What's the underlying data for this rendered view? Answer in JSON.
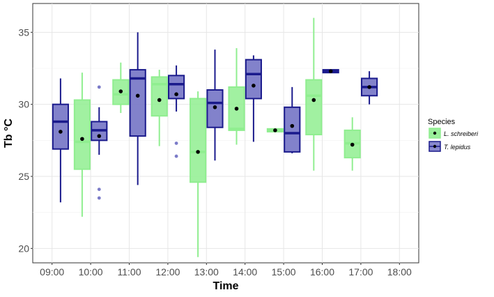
{
  "chart_data": {
    "type": "box",
    "title": "",
    "xlabel": "Time",
    "ylabel": "Tb °C",
    "ylim": [
      19.0,
      37.0
    ],
    "y_ticks": [
      20,
      25,
      30,
      35
    ],
    "categories": [
      "09:00",
      "10:00",
      "11:00",
      "12:00",
      "13:00",
      "14:00",
      "15:00",
      "16:00",
      "17:00",
      "18:00"
    ],
    "grid": true,
    "legend_title": "Species",
    "legend_position": "right",
    "series": [
      {
        "name": "L. schreiberi",
        "fill": "#90ee90",
        "line": "#90ee90",
        "boxes": [
          null,
          {
            "min": 22.2,
            "q1": 25.5,
            "median": 27.4,
            "q3": 30.3,
            "max": 32.2,
            "mean": 27.6,
            "outliers": []
          },
          {
            "min": 29.4,
            "q1": 30.0,
            "median": 30.7,
            "q3": 31.7,
            "max": 32.9,
            "mean": 30.9,
            "outliers": []
          },
          {
            "min": 27.1,
            "q1": 29.2,
            "median": 31.4,
            "q3": 31.9,
            "max": 32.4,
            "mean": 30.3,
            "outliers": []
          },
          {
            "min": 19.4,
            "q1": 24.6,
            "median": 26.7,
            "q3": 30.4,
            "max": 30.9,
            "mean": 26.7,
            "outliers": []
          },
          {
            "min": 27.2,
            "q1": 28.2,
            "median": 28.3,
            "q3": 31.2,
            "max": 33.9,
            "mean": 29.7,
            "outliers": []
          },
          {
            "min": 28.1,
            "q1": 28.1,
            "median": 28.2,
            "q3": 28.3,
            "max": 28.3,
            "mean": 28.2,
            "outliers": []
          },
          {
            "min": 25.4,
            "q1": 27.9,
            "median": 30.6,
            "q3": 31.7,
            "max": 36.0,
            "mean": 30.3,
            "outliers": []
          },
          {
            "min": 25.4,
            "q1": 26.3,
            "median": 27.3,
            "q3": 28.2,
            "max": 29.1,
            "mean": 27.2,
            "outliers": []
          },
          null
        ]
      },
      {
        "name": "T. lepidus",
        "fill": "#7b7bc8",
        "line": "#1a1a8c",
        "boxes": [
          {
            "min": 23.2,
            "q1": 26.9,
            "median": 28.8,
            "q3": 30.0,
            "max": 31.8,
            "mean": 28.1,
            "outliers": []
          },
          {
            "min": 26.5,
            "q1": 27.5,
            "median": 28.2,
            "q3": 28.8,
            "max": 29.8,
            "mean": 27.8,
            "outliers": [
              31.2,
              24.1,
              23.5
            ]
          },
          {
            "min": 24.4,
            "q1": 27.8,
            "median": 31.8,
            "q3": 32.4,
            "max": 35.0,
            "mean": 30.6,
            "outliers": []
          },
          {
            "min": 29.5,
            "q1": 30.4,
            "median": 31.4,
            "q3": 32.0,
            "max": 32.7,
            "mean": 30.7,
            "outliers": [
              27.3,
              26.4
            ]
          },
          {
            "min": 26.1,
            "q1": 28.4,
            "median": 30.1,
            "q3": 31.0,
            "max": 33.8,
            "mean": 29.8,
            "outliers": []
          },
          {
            "min": 27.4,
            "q1": 30.4,
            "median": 32.1,
            "q3": 33.1,
            "max": 33.4,
            "mean": 31.3,
            "outliers": []
          },
          {
            "min": 26.6,
            "q1": 26.7,
            "median": 28.0,
            "q3": 29.8,
            "max": 31.2,
            "mean": 28.5,
            "outliers": []
          },
          {
            "min": 32.2,
            "q1": 32.2,
            "median": 32.3,
            "q3": 32.4,
            "max": 32.4,
            "mean": 32.3,
            "outliers": []
          },
          {
            "min": 30.0,
            "q1": 30.6,
            "median": 31.2,
            "q3": 31.8,
            "max": 32.3,
            "mean": 31.2,
            "outliers": []
          },
          null
        ]
      }
    ]
  }
}
